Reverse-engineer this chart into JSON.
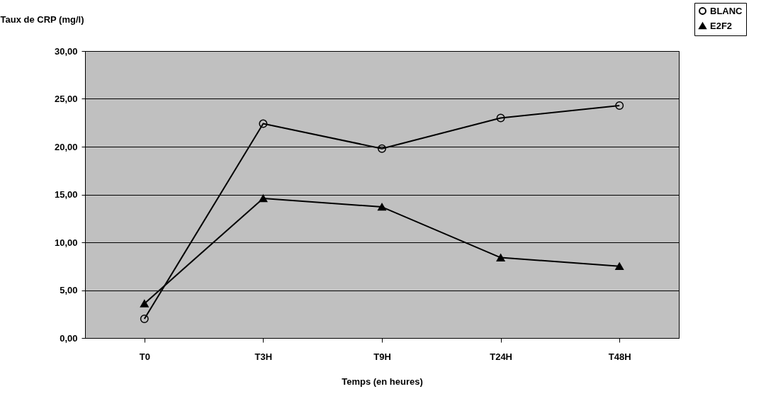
{
  "chart_data": {
    "type": "line",
    "xlabel": "Temps (en heures)",
    "ylabel": "Taux de CRP (mg/l)",
    "categories": [
      "T0",
      "T3H",
      "T9H",
      "T24H",
      "T48H"
    ],
    "series": [
      {
        "name": "BLANC",
        "color": "#000000",
        "marker": "circle",
        "values": [
          2.0,
          22.4,
          19.8,
          23.0,
          24.3
        ]
      },
      {
        "name": "E2F2",
        "color": "#000000",
        "marker": "triangle",
        "values": [
          3.6,
          14.6,
          13.7,
          8.4,
          7.5
        ]
      }
    ],
    "ylim": [
      0,
      30
    ],
    "yticks": [
      {
        "value": 0,
        "label": "0,00"
      },
      {
        "value": 5,
        "label": "5,00"
      },
      {
        "value": 10,
        "label": "10,00"
      },
      {
        "value": 15,
        "label": "15,00"
      },
      {
        "value": 20,
        "label": "20,00"
      },
      {
        "value": 25,
        "label": "25,00"
      },
      {
        "value": 30,
        "label": "30,00"
      }
    ],
    "grid": "y",
    "legend": "top right"
  }
}
